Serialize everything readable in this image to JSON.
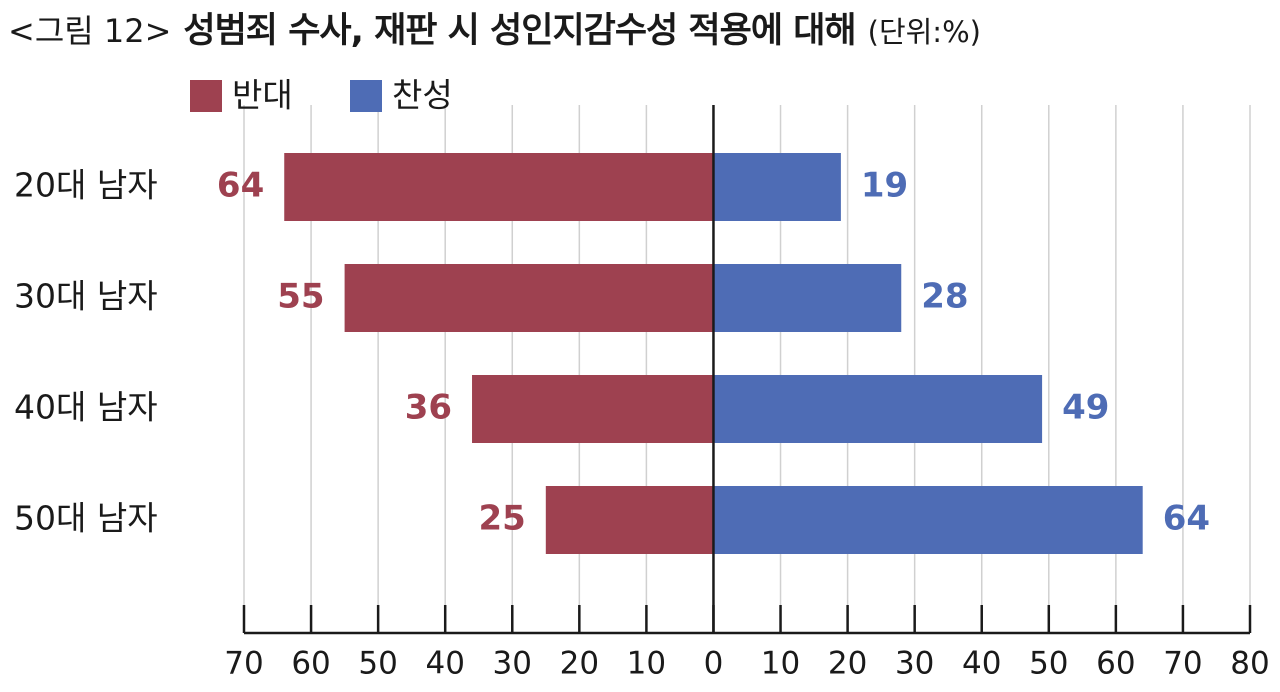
{
  "chart_data": {
    "type": "diverging-bar",
    "figure_label": "<그림 12>",
    "title": "성범죄 수사, 재판 시 성인지감수성 적용에 대해",
    "unit": "(단위:%)",
    "categories": [
      "20대 남자",
      "30대 남자",
      "40대 남자",
      "50대 남자"
    ],
    "series": [
      {
        "name": "반대",
        "color": "#9e4150",
        "values": [
          -64,
          -55,
          -36,
          -25
        ],
        "value_labels": [
          "64",
          "55",
          "36",
          "25"
        ]
      },
      {
        "name": "찬성",
        "color": "#4e6cb5",
        "values": [
          19,
          28,
          49,
          64
        ]
      }
    ],
    "xlim": [
      -70,
      80
    ],
    "xticks": [
      {
        "value": -70,
        "label": "70"
      },
      {
        "value": -60,
        "label": "60"
      },
      {
        "value": -50,
        "label": "50"
      },
      {
        "value": -40,
        "label": "40"
      },
      {
        "value": -30,
        "label": "30"
      },
      {
        "value": -20,
        "label": "20"
      },
      {
        "value": -10,
        "label": "10"
      },
      0,
      10,
      20,
      30,
      40,
      50,
      60,
      70,
      80
    ],
    "grid": true
  }
}
